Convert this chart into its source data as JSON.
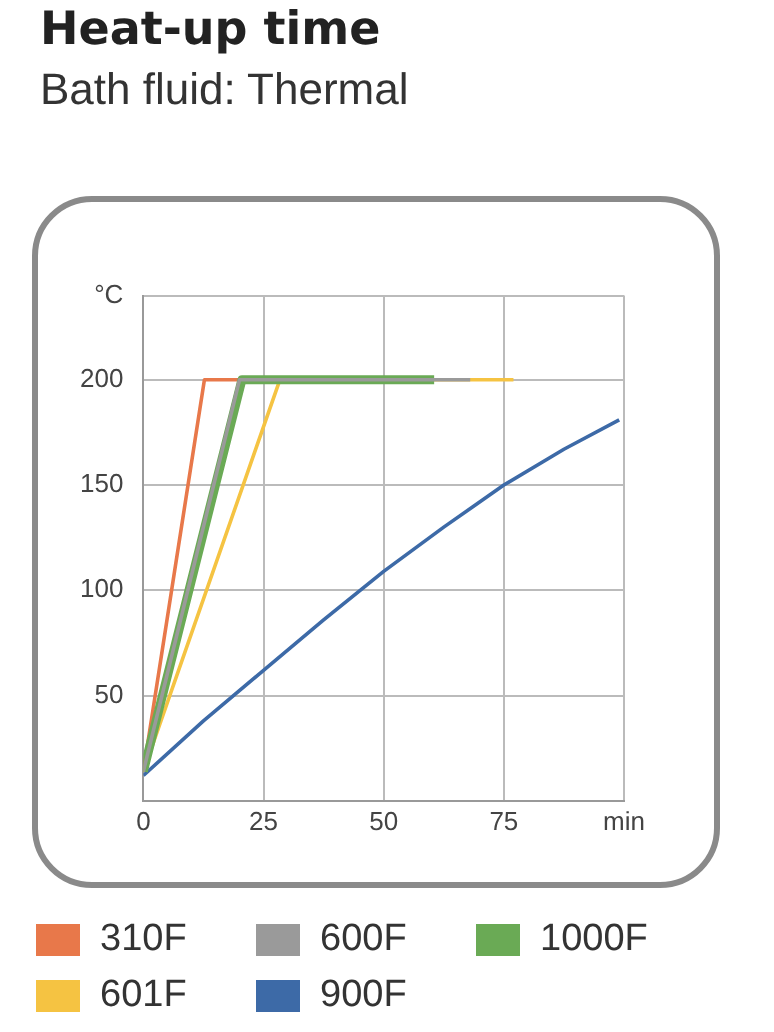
{
  "chart_data": {
    "type": "line",
    "title": "Heat-up time",
    "subtitle": "Bath fluid: Thermal",
    "xlim": [
      0,
      100
    ],
    "xticks": [
      0,
      25,
      50,
      75,
      {
        "value": 100,
        "label": "min"
      }
    ],
    "ylim": [
      0,
      240
    ],
    "yticks": [
      {
        "value": 0,
        "label": null
      },
      50,
      100,
      150,
      200,
      {
        "value": 240,
        "label": "°C"
      }
    ],
    "grid": true,
    "legend": "bottom",
    "marker": "none",
    "line_style": "solid",
    "series": [
      {
        "name": "310F",
        "color": "#e8784a",
        "x": [
          0,
          12.7,
          20
        ],
        "values": [
          14,
          200,
          200
        ]
      },
      {
        "name": "600F",
        "color": "#9a9a9a",
        "x": [
          0,
          20,
          68
        ],
        "values": [
          14,
          200,
          200
        ]
      },
      {
        "name": "1000F",
        "color": "#6aaa55",
        "x": [
          0,
          20.5,
          60.5
        ],
        "values": [
          14,
          200,
          200
        ]
      },
      {
        "name": "601F",
        "color": "#f5c342",
        "x": [
          0,
          28.4,
          77
        ],
        "values": [
          14,
          200,
          200
        ]
      },
      {
        "name": "900F",
        "color": "#3d6aa7",
        "x": [
          0,
          12.5,
          25,
          37.5,
          50,
          62.5,
          75,
          87.5,
          99
        ],
        "values": [
          12,
          38,
          62,
          86,
          109,
          130,
          150,
          167,
          181
        ]
      }
    ]
  }
}
